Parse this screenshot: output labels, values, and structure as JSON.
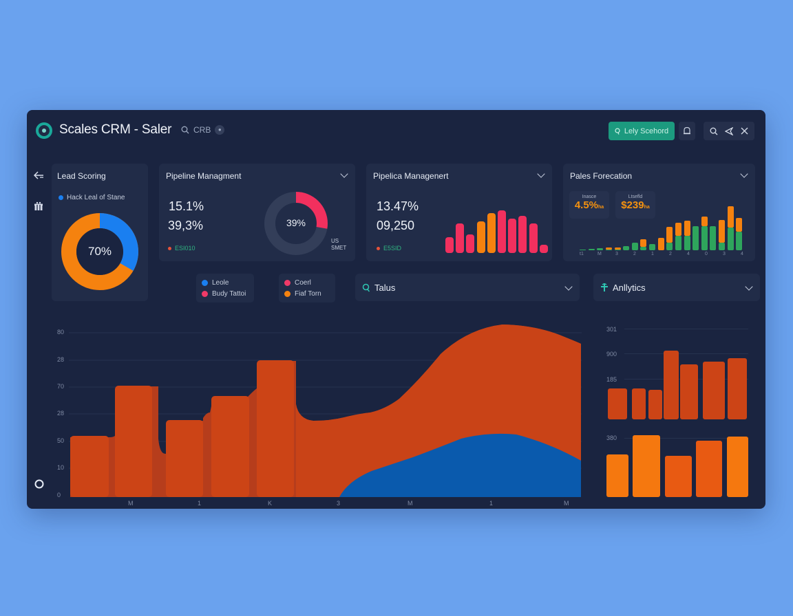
{
  "window": {
    "title": "Scales CRM - Saler",
    "search_hint": "CRB",
    "lead_button": "Lely Scehord",
    "toolbar_icons": [
      "search-icon",
      "send-icon",
      "close-icon"
    ]
  },
  "sidebar": {
    "icons": [
      "back-arrow-icon",
      "gift-icon",
      "circle-icon"
    ]
  },
  "lead_scoring": {
    "title": "Lead Scoring",
    "legend": "Hack Leal of Stane",
    "center_value": "70%",
    "colors": {
      "blue": "#1a7ff0",
      "orange": "#f5820f"
    }
  },
  "pipeline_1": {
    "title": "Pipeline Managment",
    "value_1": "15.1%",
    "value_2": "39,3%",
    "tag": "ESI010",
    "donut_center": "39%",
    "donut_label_1": "US",
    "donut_label_2": "SMET"
  },
  "pipeline_2": {
    "title": "Pipelica Managenert",
    "value_1": "13.47%",
    "value_2": "09,250",
    "tag": "E5SID"
  },
  "forecast": {
    "title": "Pales Forecation",
    "kpi_1_label": "Inasce",
    "kpi_1_value": "4.5%",
    "kpi_1_unit": "ha",
    "kpi_2_label": "Ltsefld",
    "kpi_2_value": "$239",
    "kpi_2_unit": "ha",
    "x_labels": [
      "t1",
      "M",
      "3",
      "2",
      "1",
      "2",
      "4",
      "0",
      "3",
      "4"
    ]
  },
  "legend_group_1": [
    {
      "label": "Leole",
      "color": "#1a7ff0"
    },
    {
      "label": "Budy Tattoi",
      "color": "#f03a68"
    }
  ],
  "legend_group_2": [
    {
      "label": "Coerl",
      "color": "#f03a68"
    },
    {
      "label": "Fiaf Torn",
      "color": "#f5820f"
    }
  ],
  "dropdowns": {
    "talus": "Talus",
    "analytics": "Anllytics"
  },
  "main_chart": {
    "y_labels": [
      "80",
      "28",
      "70",
      "28",
      "50",
      "10",
      "0"
    ],
    "x_labels": [
      "M",
      "1",
      "K",
      "3",
      "M",
      "1",
      "M"
    ]
  },
  "right_chart": {
    "top_y_labels": [
      "301",
      "900",
      "185"
    ],
    "bottom_y_label": "380"
  },
  "chart_data": [
    {
      "type": "pie",
      "title": "Lead Scoring",
      "categories": [
        "Blue segment",
        "Orange segment"
      ],
      "values": [
        30,
        70
      ],
      "center_label": "70%"
    },
    {
      "type": "pie",
      "title": "Pipeline Managment",
      "categories": [
        "Highlighted",
        "Remaining"
      ],
      "values": [
        39,
        61
      ],
      "center_label": "39%"
    },
    {
      "type": "bar",
      "title": "Pipelica Managenert",
      "categories": [
        "1",
        "2",
        "3",
        "4",
        "5",
        "6",
        "7",
        "8",
        "9",
        "10"
      ],
      "values": [
        30,
        55,
        35,
        60,
        75,
        80,
        65,
        70,
        55,
        15
      ],
      "colors": [
        "#f2305e",
        "#f2305e",
        "#f2305e",
        "#f5820f",
        "#f5820f",
        "#f2305e",
        "#f2305e",
        "#f2305e",
        "#f2305e",
        "#f2305e"
      ]
    },
    {
      "type": "bar",
      "title": "Pales Forecation",
      "categories": [
        "1",
        "2",
        "3",
        "4",
        "5",
        "6",
        "7",
        "8",
        "9",
        "10",
        "11",
        "12",
        "13",
        "14",
        "15",
        "16",
        "17",
        "18",
        "19"
      ],
      "series": [
        {
          "name": "Green",
          "values": [
            2,
            3,
            5,
            2,
            2,
            10,
            18,
            8,
            14,
            0,
            18,
            35,
            35,
            58,
            58,
            58,
            18,
            55,
            45
          ]
        },
        {
          "name": "Orange",
          "values": [
            0,
            0,
            0,
            4,
            4,
            0,
            0,
            18,
            0,
            30,
            38,
            30,
            35,
            0,
            22,
            0,
            55,
            50,
            33
          ]
        }
      ]
    },
    {
      "type": "area",
      "title": "Main bar/area chart",
      "x": [
        "M",
        "1",
        "K",
        "3",
        "M",
        "1",
        "M"
      ],
      "ylabel": "",
      "y_tick_labels": [
        "0",
        "10",
        "50",
        "28",
        "70",
        "28",
        "80"
      ],
      "bars": [
        40,
        70,
        48,
        62,
        86,
        50
      ],
      "series": [
        {
          "name": "Orange area",
          "values": [
            48,
            52,
            63,
            80,
            95,
            94,
            86
          ]
        },
        {
          "name": "Blue area",
          "values": [
            0,
            20,
            28,
            40,
            40,
            38,
            22
          ]
        }
      ]
    },
    {
      "type": "bar",
      "title": "Right top bars",
      "categories": [
        "1",
        "2",
        "3",
        "4",
        "5",
        "6",
        "7"
      ],
      "values": [
        45,
        45,
        43,
        100,
        80,
        84,
        89
      ],
      "y_tick_labels": [
        "185",
        "900",
        "301"
      ]
    },
    {
      "type": "bar",
      "title": "Right bottom bars",
      "categories": [
        "1",
        "2",
        "3",
        "4",
        "5"
      ],
      "values": [
        62,
        90,
        60,
        82,
        88
      ],
      "y_tick_labels": [
        "380"
      ]
    }
  ]
}
